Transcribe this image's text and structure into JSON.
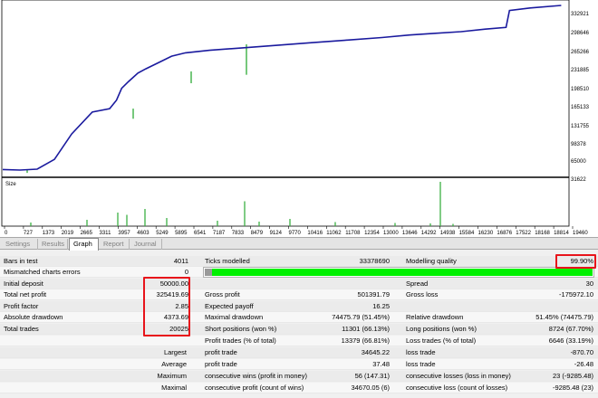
{
  "graph": {
    "balance_points": [
      [
        0,
        0.03
      ],
      [
        50,
        0.027
      ],
      [
        100,
        0.032
      ],
      [
        150,
        0.09
      ],
      [
        200,
        0.24
      ],
      [
        260,
        0.37
      ],
      [
        310,
        0.39
      ],
      [
        330,
        0.44
      ],
      [
        345,
        0.51
      ],
      [
        365,
        0.55
      ],
      [
        392,
        0.6
      ],
      [
        415,
        0.625
      ],
      [
        450,
        0.66
      ],
      [
        490,
        0.7
      ],
      [
        530,
        0.72
      ],
      [
        600,
        0.735
      ],
      [
        700,
        0.75
      ],
      [
        800,
        0.765
      ],
      [
        900,
        0.78
      ],
      [
        1000,
        0.795
      ],
      [
        1100,
        0.81
      ],
      [
        1180,
        0.825
      ],
      [
        1250,
        0.835
      ],
      [
        1330,
        0.845
      ],
      [
        1400,
        0.86
      ],
      [
        1460,
        0.87
      ],
      [
        1470,
        0.97
      ],
      [
        1530,
        0.985
      ],
      [
        1620,
        1.0
      ]
    ],
    "y_ticks": [
      "332921",
      "298646",
      "265266",
      "231885",
      "198510",
      "165133",
      "131755",
      "98378",
      "65000",
      "31622"
    ],
    "x_ticks": [
      "0",
      "727",
      "1373",
      "2019",
      "2665",
      "3311",
      "3957",
      "4603",
      "5249",
      "5895",
      "6541",
      "7187",
      "7833",
      "8479",
      "9124",
      "9770",
      "10416",
      "11062",
      "11708",
      "12354",
      "13000",
      "13646",
      "14292",
      "14938",
      "15584",
      "16230",
      "16876",
      "17522",
      "18168",
      "18814",
      "19460"
    ],
    "size_label": "Size",
    "size_bars": [
      [
        34,
        0.08
      ],
      [
        96,
        0.14
      ],
      [
        130,
        0.3
      ],
      [
        140,
        0.25
      ],
      [
        160,
        0.38
      ],
      [
        184,
        0.18
      ],
      [
        240,
        0.12
      ],
      [
        270,
        0.55
      ],
      [
        286,
        0.1
      ],
      [
        320,
        0.16
      ],
      [
        370,
        0.09
      ],
      [
        436,
        0.07
      ],
      [
        475,
        0.06
      ],
      [
        486,
        0.98
      ],
      [
        500,
        0.05
      ]
    ]
  },
  "tabs": [
    {
      "label": "Settings",
      "active": false
    },
    {
      "label": "Results",
      "active": false
    },
    {
      "label": "Graph",
      "active": true
    },
    {
      "label": "Report",
      "active": false
    },
    {
      "label": "Journal",
      "active": false
    }
  ],
  "report": {
    "bars_in_test_label": "Bars in test",
    "bars_in_test": "4011",
    "ticks_modelled_label": "Ticks modelled",
    "ticks_modelled": "33378690",
    "modelling_quality_label": "Modelling quality",
    "modelling_quality": "99.90%",
    "modelling_quality_fraction": 0.999,
    "mismatched_label": "Mismatched charts errors",
    "mismatched": "0",
    "initial_deposit_label": "Initial deposit",
    "initial_deposit": "50000.00",
    "spread_label": "Spread",
    "spread": "30",
    "total_net_profit_label": "Total net profit",
    "total_net_profit": "325419.69",
    "gross_profit_label": "Gross profit",
    "gross_profit": "501391.79",
    "gross_loss_label": "Gross loss",
    "gross_loss": "-175972.10",
    "profit_factor_label": "Profit factor",
    "profit_factor": "2.85",
    "expected_payoff_label": "Expected payoff",
    "expected_payoff": "16.25",
    "absolute_drawdown_label": "Absolute drawdown",
    "absolute_drawdown": "4373.69",
    "maximal_drawdown_label": "Maximal drawdown",
    "maximal_drawdown": "74475.79 (51.45%)",
    "relative_drawdown_label": "Relative drawdown",
    "relative_drawdown": "51.45% (74475.79)",
    "total_trades_label": "Total trades",
    "total_trades": "20025",
    "short_positions_label": "Short positions (won %)",
    "short_positions": "11301 (66.13%)",
    "long_positions_label": "Long positions (won %)",
    "long_positions": "8724 (67.70%)",
    "profit_trades_label": "Profit trades (% of total)",
    "profit_trades": "13379 (66.81%)",
    "loss_trades_label": "Loss trades (% of total)",
    "loss_trades": "6646 (33.19%)",
    "largest_label": "Largest",
    "largest_profit_label": "profit trade",
    "largest_profit": "34645.22",
    "largest_loss_label": "loss trade",
    "largest_loss": "-870.70",
    "average_label": "Average",
    "average_profit_label": "profit trade",
    "average_profit": "37.48",
    "average_loss_label": "loss trade",
    "average_loss": "-26.48",
    "maximum_label": "Maximum",
    "max_cons_wins_label": "consecutive wins (profit in money)",
    "max_cons_wins": "56 (147.31)",
    "max_cons_losses_label": "consecutive losses (loss in money)",
    "max_cons_losses": "23 (-9285.48)",
    "maximal_label": "Maximal",
    "maximal_cons_profit_label": "consecutive profit (count of wins)",
    "maximal_cons_profit": "34670.05 (6)",
    "maximal_cons_loss_label": "consecutive loss (count of losses)",
    "maximal_cons_loss": "-9285.48 (23)"
  },
  "colors": {
    "balance_line": "#1a1a9e",
    "equity_spike": "#3cb043",
    "size_bar": "#3cb043",
    "quality_bar": "#00f000",
    "highlight": "#e8141b"
  }
}
